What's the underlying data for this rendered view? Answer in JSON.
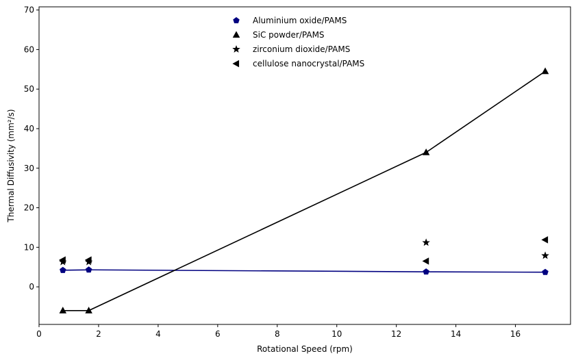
{
  "chart_data": {
    "type": "scatter",
    "title": "",
    "xlabel": "Rotational Speed (rpm)",
    "ylabel": "Thermal Diffusivity (mm²/s)",
    "xlim": [
      0,
      17.85
    ],
    "ylim": [
      -9.5,
      70.8
    ],
    "xticks": [
      0,
      2,
      4,
      6,
      8,
      10,
      12,
      14,
      16
    ],
    "yticks": [
      0,
      10,
      20,
      30,
      40,
      50,
      60,
      70
    ],
    "grid": false,
    "legend_position": "top-center",
    "series": [
      {
        "name": "Aluminium oxide/PAMS",
        "marker": "pentagon",
        "color": "#000080",
        "line": true,
        "x": [
          0.8,
          1.67,
          13.0,
          17.0
        ],
        "y": [
          4.2,
          4.3,
          3.8,
          3.7
        ]
      },
      {
        "name": "SiC powder/PAMS",
        "marker": "triangle-up",
        "color": "#000000",
        "line": true,
        "x": [
          0.8,
          1.67,
          13.0,
          17.0
        ],
        "y": [
          -6.0,
          -6.0,
          34.0,
          54.5
        ]
      },
      {
        "name": "zirconium dioxide/PAMS",
        "marker": "star",
        "color": "#000000",
        "line": false,
        "x": [
          0.8,
          1.67,
          13.0,
          17.0
        ],
        "y": [
          6.3,
          6.3,
          11.2,
          7.9
        ]
      },
      {
        "name": "cellulose nanocrystal/PAMS",
        "marker": "triangle-left",
        "color": "#000000",
        "line": false,
        "x": [
          0.8,
          1.67,
          13.0,
          17.0
        ],
        "y": [
          6.8,
          6.8,
          6.5,
          11.9
        ]
      }
    ]
  }
}
